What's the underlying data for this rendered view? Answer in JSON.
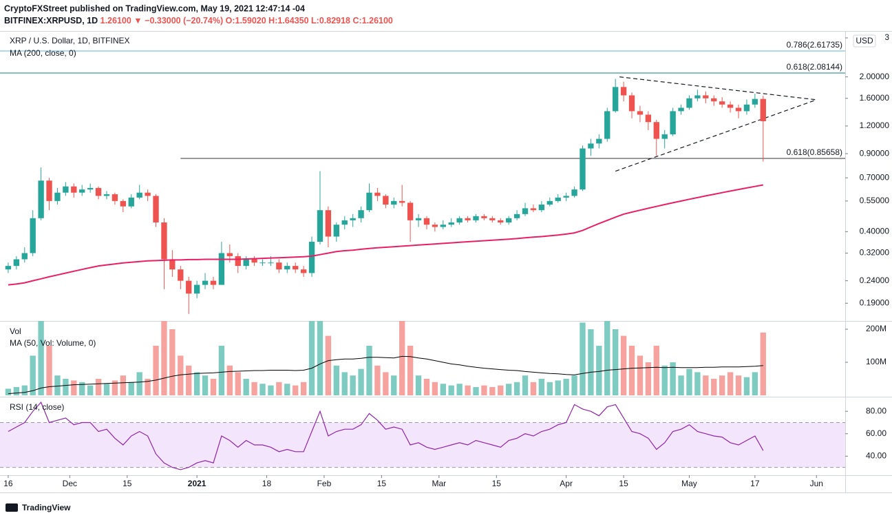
{
  "header": {
    "publisher": "CryptoFXStreet published on TradingView.com, May 19, 2021 12:47:14 -04",
    "symbol": "BITFINEX:XRPUSD, 1D",
    "last": "1.26100",
    "change": "▼ −0.33000 (−20.74%)",
    "ohlc": [
      "O:1.59020",
      "H:1.64350",
      "L:0.82918",
      "C:1.26100"
    ]
  },
  "footer": {
    "brand": "TradingView"
  },
  "chart_data": {
    "type": "candlestick",
    "title": "XRP / U.S. Dollar, 1D, BITFINEX",
    "currency": "USD",
    "log_scale": true,
    "up_color": "#26a69a",
    "down_color": "#ef5350",
    "xlim": [
      "2020-11-14",
      "2021-06-08"
    ],
    "xticks": [
      {
        "value": "2020-11-16",
        "label": "16"
      },
      {
        "value": "2020-12-01",
        "label": "Dec"
      },
      {
        "value": "2020-12-15",
        "label": "15"
      },
      {
        "value": "2021-01-01",
        "label": "2021"
      },
      {
        "value": "2021-01-18",
        "label": "18"
      },
      {
        "value": "2021-02-01",
        "label": "Feb"
      },
      {
        "value": "2021-02-15",
        "label": "15"
      },
      {
        "value": "2021-03-01",
        "label": "Mar"
      },
      {
        "value": "2021-03-15",
        "label": "15"
      },
      {
        "value": "2021-04-01",
        "label": "Apr"
      },
      {
        "value": "2021-04-15",
        "label": "15"
      },
      {
        "value": "2021-05-01",
        "label": "May"
      },
      {
        "value": "2021-05-17",
        "label": "17"
      },
      {
        "value": "2021-06-01",
        "label": "Jun"
      }
    ],
    "ylim": [
      0.158,
      3.2
    ],
    "yticks": [
      3,
      {
        "value": 2,
        "label": "2.00000"
      },
      {
        "value": 1.6,
        "label": "1.60000"
      },
      {
        "value": 1.2,
        "label": "1.20000"
      },
      {
        "value": 0.9,
        "label": "0.90000"
      },
      {
        "value": 0.7,
        "label": "0.70000"
      },
      {
        "value": 0.55,
        "label": "0.55000"
      },
      {
        "value": 0.4,
        "label": "0.40000"
      },
      {
        "value": 0.32,
        "label": "0.32000"
      },
      {
        "value": 0.24,
        "label": "0.24000"
      },
      {
        "value": 0.19,
        "label": "0.19000"
      }
    ],
    "x": [
      "2020-11-16",
      "2020-11-18",
      "2020-11-20",
      "2020-11-22",
      "2020-11-24",
      "2020-11-26",
      "2020-11-28",
      "2020-11-30",
      "2020-12-02",
      "2020-12-04",
      "2020-12-06",
      "2020-12-08",
      "2020-12-10",
      "2020-12-12",
      "2020-12-14",
      "2020-12-16",
      "2020-12-18",
      "2020-12-20",
      "2020-12-22",
      "2020-12-24",
      "2020-12-26",
      "2020-12-28",
      "2020-12-30",
      "2021-01-01",
      "2021-01-03",
      "2021-01-05",
      "2021-01-07",
      "2021-01-09",
      "2021-01-11",
      "2021-01-13",
      "2021-01-15",
      "2021-01-17",
      "2021-01-19",
      "2021-01-21",
      "2021-01-23",
      "2021-01-25",
      "2021-01-27",
      "2021-01-29",
      "2021-01-31",
      "2021-02-02",
      "2021-02-04",
      "2021-02-06",
      "2021-02-08",
      "2021-02-10",
      "2021-02-12",
      "2021-02-14",
      "2021-02-16",
      "2021-02-18",
      "2021-02-20",
      "2021-02-22",
      "2021-02-24",
      "2021-02-26",
      "2021-02-28",
      "2021-03-02",
      "2021-03-04",
      "2021-03-06",
      "2021-03-08",
      "2021-03-10",
      "2021-03-12",
      "2021-03-14",
      "2021-03-16",
      "2021-03-18",
      "2021-03-20",
      "2021-03-22",
      "2021-03-24",
      "2021-03-26",
      "2021-03-28",
      "2021-03-30",
      "2021-04-01",
      "2021-04-03",
      "2021-04-05",
      "2021-04-07",
      "2021-04-09",
      "2021-04-11",
      "2021-04-13",
      "2021-04-15",
      "2021-04-17",
      "2021-04-19",
      "2021-04-21",
      "2021-04-23",
      "2021-04-25",
      "2021-04-27",
      "2021-04-29",
      "2021-05-01",
      "2021-05-03",
      "2021-05-05",
      "2021-05-07",
      "2021-05-09",
      "2021-05-11",
      "2021-05-13",
      "2021-05-15",
      "2021-05-17",
      "2021-05-19"
    ],
    "open": [
      0.27,
      0.28,
      0.3,
      0.32,
      0.46,
      0.68,
      0.55,
      0.6,
      0.64,
      0.6,
      0.62,
      0.63,
      0.58,
      0.59,
      0.55,
      0.52,
      0.57,
      0.6,
      0.58,
      0.44,
      0.3,
      0.27,
      0.24,
      0.21,
      0.23,
      0.24,
      0.23,
      0.32,
      0.31,
      0.28,
      0.3,
      0.29,
      0.29,
      0.29,
      0.27,
      0.28,
      0.27,
      0.26,
      0.36,
      0.5,
      0.38,
      0.43,
      0.45,
      0.46,
      0.5,
      0.6,
      0.58,
      0.53,
      0.55,
      0.54,
      0.45,
      0.46,
      0.43,
      0.42,
      0.43,
      0.44,
      0.46,
      0.45,
      0.47,
      0.46,
      0.45,
      0.44,
      0.46,
      0.48,
      0.51,
      0.5,
      0.53,
      0.55,
      0.57,
      0.58,
      0.62,
      0.95,
      1.0,
      1.05,
      1.4,
      1.8,
      1.65,
      1.4,
      1.35,
      1.25,
      1.05,
      1.1,
      1.4,
      1.45,
      1.6,
      1.65,
      1.6,
      1.55,
      1.5,
      1.45,
      1.4,
      1.5,
      1.5902
    ],
    "high": [
      0.29,
      0.31,
      0.34,
      0.5,
      0.78,
      0.7,
      0.63,
      0.67,
      0.66,
      0.65,
      0.66,
      0.64,
      0.61,
      0.6,
      0.56,
      0.59,
      0.65,
      0.62,
      0.59,
      0.46,
      0.33,
      0.28,
      0.25,
      0.24,
      0.26,
      0.25,
      0.36,
      0.35,
      0.32,
      0.31,
      0.31,
      0.3,
      0.31,
      0.3,
      0.29,
      0.29,
      0.28,
      0.38,
      0.75,
      0.52,
      0.44,
      0.47,
      0.48,
      0.52,
      0.66,
      0.63,
      0.59,
      0.57,
      0.65,
      0.55,
      0.48,
      0.47,
      0.44,
      0.45,
      0.46,
      0.47,
      0.47,
      0.48,
      0.48,
      0.47,
      0.46,
      0.47,
      0.5,
      0.54,
      0.53,
      0.55,
      0.57,
      0.59,
      0.6,
      0.64,
      0.98,
      1.05,
      1.1,
      1.45,
      1.96,
      1.9,
      1.7,
      1.48,
      1.4,
      1.28,
      1.15,
      1.45,
      1.5,
      1.65,
      1.75,
      1.72,
      1.65,
      1.62,
      1.55,
      1.5,
      1.58,
      1.68,
      1.6435
    ],
    "low": [
      0.26,
      0.27,
      0.29,
      0.31,
      0.45,
      0.5,
      0.53,
      0.58,
      0.57,
      0.58,
      0.6,
      0.56,
      0.56,
      0.53,
      0.49,
      0.51,
      0.56,
      0.55,
      0.42,
      0.22,
      0.25,
      0.22,
      0.17,
      0.2,
      0.22,
      0.22,
      0.23,
      0.29,
      0.26,
      0.27,
      0.28,
      0.28,
      0.28,
      0.26,
      0.26,
      0.26,
      0.25,
      0.25,
      0.35,
      0.34,
      0.36,
      0.41,
      0.42,
      0.44,
      0.49,
      0.55,
      0.51,
      0.51,
      0.52,
      0.36,
      0.42,
      0.41,
      0.4,
      0.41,
      0.42,
      0.43,
      0.44,
      0.44,
      0.45,
      0.44,
      0.43,
      0.43,
      0.45,
      0.47,
      0.49,
      0.49,
      0.52,
      0.54,
      0.55,
      0.57,
      0.61,
      0.88,
      0.95,
      1.02,
      1.38,
      1.55,
      1.3,
      1.25,
      1.15,
      0.88,
      0.95,
      1.08,
      1.35,
      1.42,
      1.55,
      1.52,
      1.48,
      1.45,
      1.38,
      1.3,
      1.35,
      1.45,
      0.82918
    ],
    "close": [
      0.28,
      0.3,
      0.32,
      0.46,
      0.68,
      0.55,
      0.6,
      0.64,
      0.6,
      0.62,
      0.63,
      0.58,
      0.59,
      0.55,
      0.52,
      0.57,
      0.6,
      0.58,
      0.44,
      0.3,
      0.27,
      0.24,
      0.21,
      0.23,
      0.24,
      0.23,
      0.32,
      0.31,
      0.28,
      0.3,
      0.29,
      0.29,
      0.29,
      0.27,
      0.28,
      0.27,
      0.26,
      0.36,
      0.5,
      0.38,
      0.43,
      0.45,
      0.46,
      0.5,
      0.6,
      0.58,
      0.53,
      0.55,
      0.54,
      0.45,
      0.46,
      0.43,
      0.42,
      0.43,
      0.44,
      0.46,
      0.45,
      0.47,
      0.46,
      0.45,
      0.44,
      0.46,
      0.48,
      0.51,
      0.5,
      0.53,
      0.55,
      0.57,
      0.58,
      0.62,
      0.95,
      1.0,
      1.05,
      1.4,
      1.8,
      1.65,
      1.4,
      1.35,
      1.25,
      1.05,
      1.1,
      1.4,
      1.45,
      1.6,
      1.65,
      1.6,
      1.55,
      1.5,
      1.45,
      1.4,
      1.5,
      1.5902,
      1.261
    ],
    "series": [
      {
        "name": "MA (200, close, 0)",
        "color": "#e91e63",
        "values": [
          0.23,
          0.232,
          0.235,
          0.24,
          0.245,
          0.25,
          0.255,
          0.26,
          0.265,
          0.27,
          0.275,
          0.28,
          0.283,
          0.286,
          0.289,
          0.291,
          0.293,
          0.295,
          0.296,
          0.297,
          0.298,
          0.298,
          0.299,
          0.299,
          0.3,
          0.3,
          0.3,
          0.3,
          0.3,
          0.301,
          0.302,
          0.303,
          0.304,
          0.305,
          0.306,
          0.307,
          0.308,
          0.31,
          0.315,
          0.32,
          0.325,
          0.328,
          0.33,
          0.333,
          0.336,
          0.338,
          0.34,
          0.342,
          0.344,
          0.346,
          0.348,
          0.35,
          0.352,
          0.354,
          0.356,
          0.358,
          0.36,
          0.362,
          0.364,
          0.366,
          0.368,
          0.37,
          0.372,
          0.375,
          0.378,
          0.38,
          0.383,
          0.386,
          0.39,
          0.395,
          0.405,
          0.42,
          0.435,
          0.45,
          0.465,
          0.48,
          0.49,
          0.5,
          0.51,
          0.52,
          0.53,
          0.54,
          0.55,
          0.56,
          0.57,
          0.58,
          0.59,
          0.6,
          0.61,
          0.62,
          0.63,
          0.64,
          0.65
        ]
      }
    ],
    "fib_levels": [
      {
        "label": "0.786(2.61735)",
        "value": 2.61735,
        "color": "#5fb3e4"
      },
      {
        "label": "0.618(2.08144)",
        "value": 2.08144,
        "color": "#0e7c86"
      },
      {
        "label": "0.618(0.85658)",
        "value": 0.85658,
        "color": "#333333",
        "start": "2020-12-28"
      }
    ],
    "trendlines": [
      {
        "x": [
          "2021-04-14",
          "2021-06-01"
        ],
        "y": [
          2.0,
          1.576
        ]
      },
      {
        "x": [
          "2021-04-13",
          "2021-06-01"
        ],
        "y": [
          0.75,
          1.576
        ]
      }
    ],
    "volume": {
      "title": "Vol",
      "ylim": [
        0,
        225
      ],
      "yticks": [
        {
          "value": 200,
          "label": "200M"
        },
        {
          "value": 100,
          "label": "100M"
        }
      ],
      "up_color": "#7ecbc2",
      "down_color": "#f6a3a0",
      "values": [
        20,
        25,
        30,
        120,
        250,
        150,
        60,
        50,
        45,
        40,
        30,
        50,
        35,
        45,
        60,
        40,
        70,
        50,
        150,
        250,
        200,
        120,
        90,
        70,
        60,
        50,
        150,
        90,
        70,
        50,
        40,
        35,
        30,
        40,
        35,
        30,
        40,
        230,
        250,
        180,
        90,
        70,
        60,
        80,
        150,
        90,
        70,
        60,
        240,
        150,
        60,
        50,
        40,
        35,
        30,
        35,
        30,
        25,
        30,
        25,
        30,
        35,
        40,
        60,
        40,
        50,
        40,
        45,
        50,
        60,
        220,
        200,
        150,
        230,
        200,
        180,
        150,
        120,
        100,
        150,
        90,
        100,
        60,
        80,
        70,
        60,
        50,
        60,
        70,
        60,
        55,
        70,
        190
      ],
      "series": [
        {
          "name": "MA (50, Vol: Volume, 0)",
          "color": "#000000",
          "values": [
            5,
            7,
            9,
            14,
            22,
            26,
            28,
            30,
            32,
            33,
            34,
            35,
            36,
            37,
            38,
            39,
            40,
            42,
            46,
            52,
            58,
            62,
            64,
            66,
            67,
            68,
            70,
            72,
            73,
            74,
            75,
            75,
            76,
            76,
            76,
            75,
            76,
            82,
            95,
            105,
            108,
            110,
            110,
            112,
            115,
            115,
            114,
            113,
            118,
            117,
            113,
            110,
            105,
            100,
            95,
            92,
            88,
            85,
            82,
            80,
            78,
            76,
            75,
            72,
            70,
            68,
            66,
            65,
            63,
            62,
            66,
            70,
            72,
            76,
            78,
            80,
            82,
            83,
            84,
            85,
            84,
            85,
            84,
            84,
            84,
            85,
            85,
            86,
            86,
            86,
            87,
            88,
            90
          ]
        }
      ]
    },
    "rsi": {
      "type": "line",
      "name": "RSI (14, close)",
      "color": "#8e24aa",
      "ylim": [
        23,
        93
      ],
      "band": [
        30,
        70
      ],
      "band_color": "#f3e5fc",
      "yticks": [
        {
          "value": 80,
          "label": "80.00"
        },
        {
          "value": 60,
          "label": "60.00"
        },
        {
          "value": 40,
          "label": "40.00"
        }
      ],
      "values": [
        62,
        66,
        70,
        80,
        88,
        70,
        72,
        74,
        68,
        70,
        70,
        62,
        64,
        56,
        50,
        58,
        62,
        58,
        42,
        34,
        30,
        28,
        30,
        34,
        36,
        34,
        58,
        54,
        48,
        54,
        50,
        50,
        48,
        44,
        46,
        44,
        44,
        62,
        80,
        58,
        62,
        64,
        64,
        68,
        78,
        72,
        64,
        66,
        64,
        50,
        52,
        48,
        46,
        48,
        50,
        52,
        50,
        54,
        52,
        50,
        48,
        54,
        56,
        60,
        58,
        62,
        64,
        68,
        70,
        86,
        82,
        80,
        76,
        84,
        86,
        74,
        62,
        60,
        56,
        46,
        52,
        62,
        64,
        68,
        62,
        60,
        58,
        57,
        52,
        50,
        54,
        58,
        45
      ]
    }
  }
}
